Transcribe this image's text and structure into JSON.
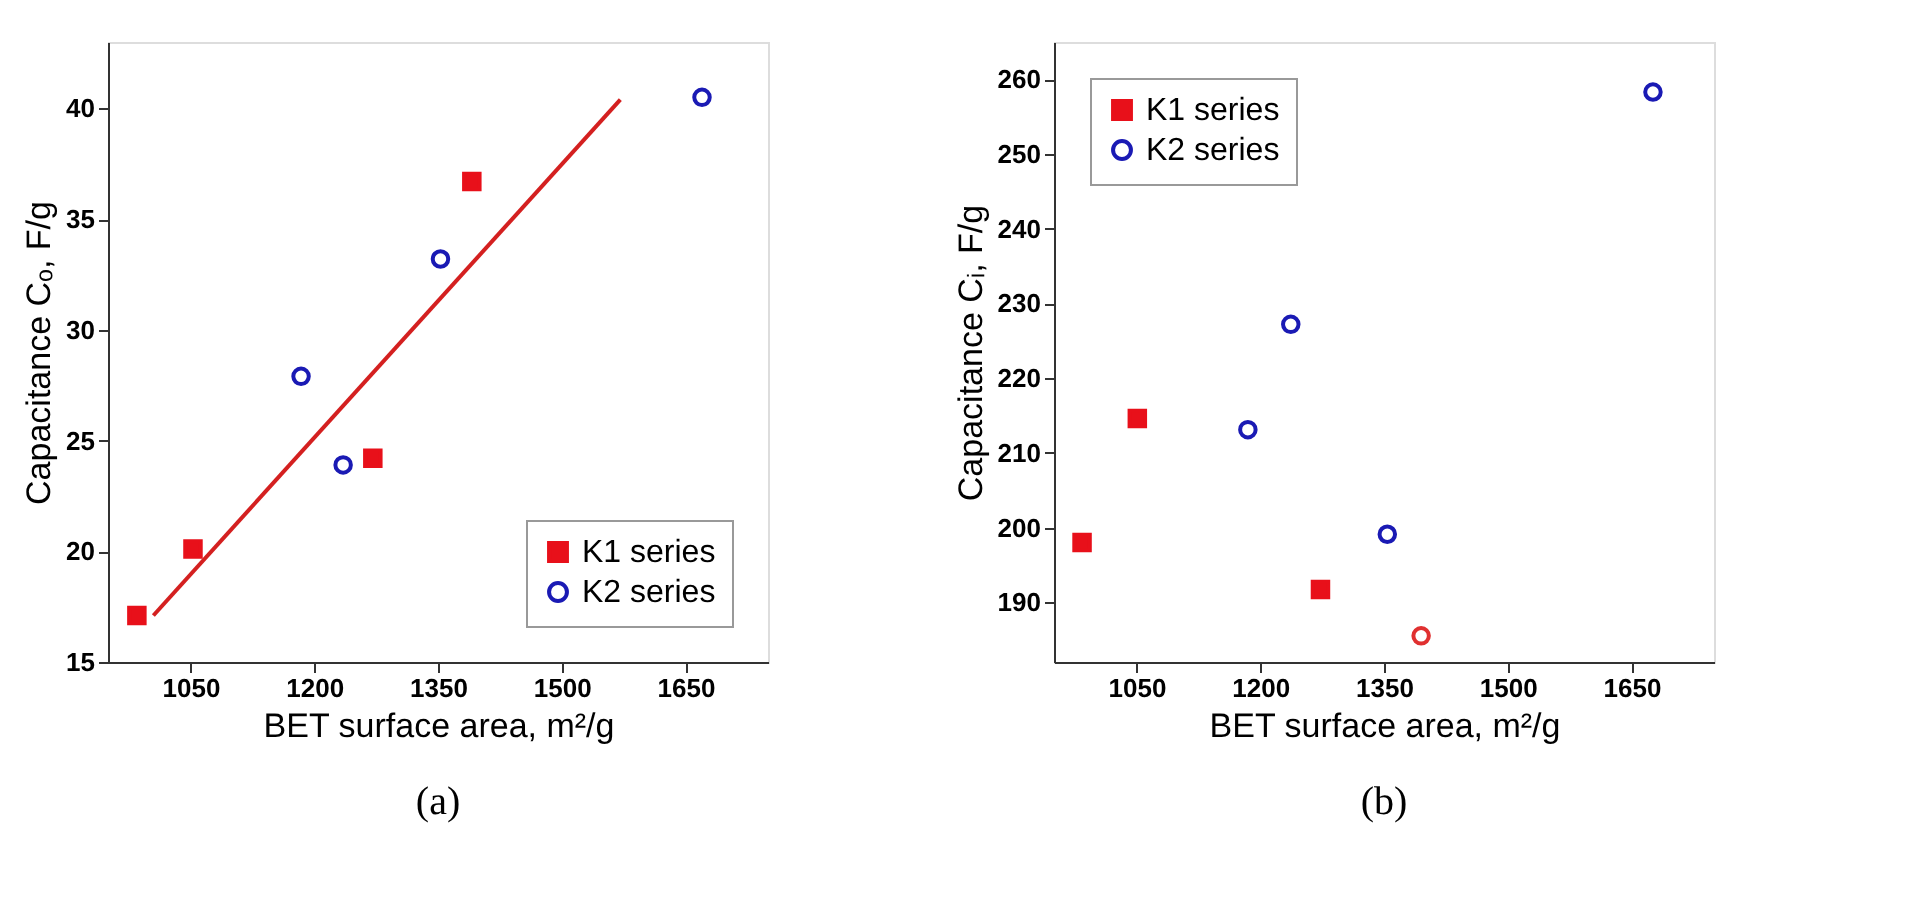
{
  "chart_data": [
    {
      "type": "scatter",
      "title": "(a)",
      "xlabel": "BET surface area, m²/g",
      "ylabel": "Capacitance Cₒ, F/g",
      "xlim": [
        950,
        1750
      ],
      "xticks": [
        1050,
        1200,
        1350,
        1500,
        1650
      ],
      "ylim": [
        15,
        43
      ],
      "yticks": [
        15,
        20,
        25,
        30,
        35,
        40
      ],
      "grid": false,
      "legend": "bottom right",
      "series": [
        {
          "name": "K1 series",
          "color": "#e8101a",
          "marker": "square",
          "x": [
            985,
            1053,
            1271,
            1391
          ],
          "values": [
            17.1,
            20.1,
            24.2,
            36.7
          ]
        },
        {
          "name": "K2 series",
          "color": "#1a1ab4",
          "marker": "circle",
          "x": [
            1184,
            1235,
            1353,
            1670
          ],
          "values": [
            27.9,
            23.9,
            33.2,
            40.5
          ]
        },
        {
          "type": "line",
          "color": "#d42020",
          "marker": "none",
          "line_style": "solid",
          "x": [
            1005,
            1571
          ],
          "values": [
            17.1,
            40.4
          ]
        }
      ]
    },
    {
      "type": "scatter",
      "title": "(b)",
      "xlabel": "BET surface area, m²/g",
      "ylabel": "Capacitance Cᵢ, F/g",
      "xlim": [
        950,
        1750
      ],
      "xticks": [
        1050,
        1200,
        1350,
        1500,
        1650
      ],
      "ylim": [
        182,
        265
      ],
      "yticks": [
        190,
        200,
        210,
        220,
        230,
        240,
        250,
        260
      ],
      "grid": false,
      "legend": "top left",
      "series": [
        {
          "name": "K1 series",
          "color": "#e8101a",
          "marker": "square",
          "x": [
            984,
            1051,
            1273
          ],
          "values": [
            198.0,
            214.6,
            191.7
          ]
        },
        {
          "name": "K2 series",
          "color": "#1a1ab4",
          "marker": "circle",
          "x": [
            1185,
            1237,
            1354,
            1676
          ],
          "values": [
            213.1,
            227.2,
            199.1,
            258.3
          ]
        },
        {
          "color": "#e03030",
          "marker": "circle",
          "x": [
            1395
          ],
          "values": [
            185.5
          ]
        }
      ]
    }
  ]
}
